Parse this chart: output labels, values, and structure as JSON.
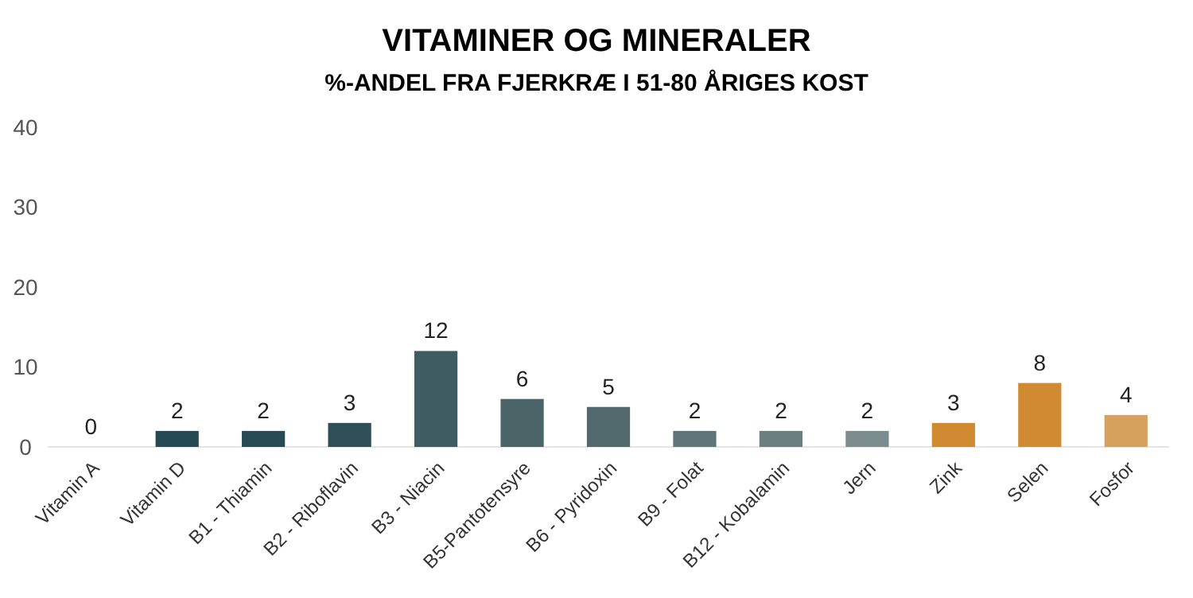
{
  "chart_data": {
    "type": "bar",
    "title": "VITAMINER OG MINERALER",
    "subtitle": "%-ANDEL FRA FJERKRÆ I 51-80 ÅRIGES KOST",
    "categories": [
      "Vitamin A",
      "Vitamin D",
      "B1 - Thiamin",
      "B2 - Riboflavin",
      "B3 - Niacin",
      "B5-Pantotensyre",
      "B6 - Pyridoxin",
      "B9 - Folat",
      "B12 - Kobalamin",
      "Jern",
      "Zink",
      "Selen",
      "Fosfor"
    ],
    "values": [
      0,
      2,
      2,
      3,
      12,
      6,
      5,
      2,
      2,
      2,
      3,
      8,
      4
    ],
    "colors": [
      "#264a55",
      "#264a55",
      "#274a55",
      "#2f4f57",
      "#3f5c62",
      "#4a6468",
      "#52696d",
      "#5e7477",
      "#6a7e80",
      "#7a8c8e",
      "#d08a30",
      "#cf8a32",
      "#d6a05e"
    ],
    "ylim": [
      0,
      40
    ],
    "yticks": [
      0,
      10,
      20,
      30,
      40
    ],
    "data_labels": true,
    "grid": false
  }
}
